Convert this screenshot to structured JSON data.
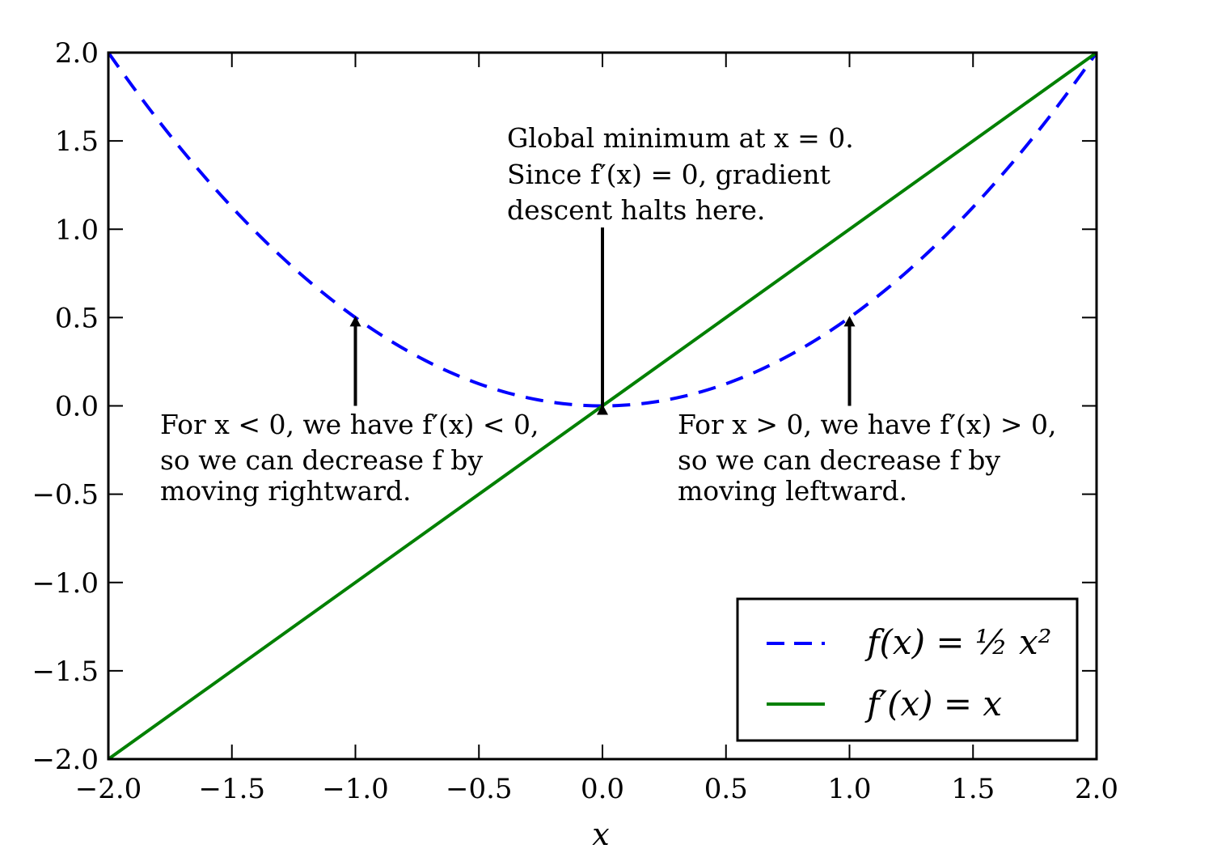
{
  "chart_data": {
    "type": "line",
    "xlabel": "x",
    "ylabel": "",
    "xlim": [
      -2.0,
      2.0
    ],
    "ylim": [
      -2.0,
      2.0
    ],
    "x_ticks": [
      -2.0,
      -1.5,
      -1.0,
      -0.5,
      0.0,
      0.5,
      1.0,
      1.5,
      2.0
    ],
    "x_tick_labels": [
      "−2.0",
      "−1.5",
      "−1.0",
      "−0.5",
      "0.0",
      "0.5",
      "1.0",
      "1.5",
      "2.0"
    ],
    "y_ticks": [
      -2.0,
      -1.5,
      -1.0,
      -0.5,
      0.0,
      0.5,
      1.0,
      1.5,
      2.0
    ],
    "y_tick_labels": [
      "−2.0",
      "−1.5",
      "−1.0",
      "−0.5",
      "0.0",
      "0.5",
      "1.0",
      "1.5",
      "2.0"
    ],
    "grid": false,
    "legend_position": "lower-right",
    "series": [
      {
        "name": "f(x) = ½ x²",
        "style": "dashed",
        "color": "#0000ff",
        "x": [
          -2.0,
          -1.75,
          -1.5,
          -1.25,
          -1.0,
          -0.75,
          -0.5,
          -0.25,
          0.0,
          0.25,
          0.5,
          0.75,
          1.0,
          1.25,
          1.5,
          1.75,
          2.0
        ],
        "y": [
          2.0,
          1.53125,
          1.125,
          0.78125,
          0.5,
          0.28125,
          0.125,
          0.03125,
          0.0,
          0.03125,
          0.125,
          0.28125,
          0.5,
          0.78125,
          1.125,
          1.53125,
          2.0
        ]
      },
      {
        "name": "f′(x) = x",
        "style": "solid",
        "color": "#008000",
        "x": [
          -2.0,
          2.0
        ],
        "y": [
          -2.0,
          2.0
        ]
      }
    ],
    "annotations": [
      {
        "lines": [
          "Global minimum at x = 0.",
          "Since f′(x) = 0, gradient",
          "descent halts here."
        ],
        "arrow_to": [
          0.0,
          0.0
        ]
      },
      {
        "lines": [
          "For x < 0, we have f′(x) < 0,",
          "so we can decrease f by",
          "moving rightward."
        ],
        "arrow_to": [
          -1.0,
          0.5
        ]
      },
      {
        "lines": [
          "For x > 0, we have f′(x) > 0,",
          "so we can decrease f by",
          "moving leftward."
        ],
        "arrow_to": [
          1.0,
          0.5
        ]
      }
    ]
  }
}
